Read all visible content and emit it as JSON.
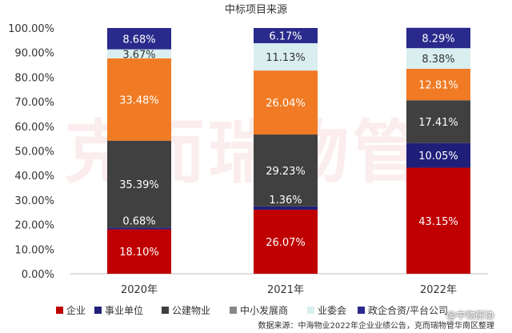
{
  "chart_data": {
    "type": "bar",
    "stacked": true,
    "title": "中标项目来源",
    "categories": [
      "2020年",
      "2021年",
      "2022年"
    ],
    "ylim": [
      0,
      100
    ],
    "yticks": [
      "0.00%",
      "10.00%",
      "20.00%",
      "30.00%",
      "40.00%",
      "50.00%",
      "60.00%",
      "70.00%",
      "80.00%",
      "90.00%",
      "100.00%"
    ],
    "legend_position": "bottom",
    "grid": false,
    "series": [
      {
        "name": "企业",
        "color": "#c00000",
        "values": [
          18.1,
          26.07,
          43.15
        ],
        "labels": [
          "18.10%",
          "26.07%",
          "43.15%"
        ]
      },
      {
        "name": "事业单位",
        "color": "#1f1f7a",
        "values": [
          0.68,
          1.36,
          10.05
        ],
        "labels": [
          "0.68%",
          "1.36%",
          "10.05%"
        ]
      },
      {
        "name": "公建物业",
        "color": "#404040",
        "values": [
          35.39,
          29.23,
          17.41
        ],
        "labels": [
          "35.39%",
          "29.23%",
          "17.41%"
        ]
      },
      {
        "name": "中小发展商",
        "color": "#f07b24",
        "values": [
          33.48,
          26.04,
          12.81
        ],
        "labels": [
          "33.48%",
          "26.04%",
          "12.81%"
        ]
      },
      {
        "name": "业委会",
        "color": "#d9eeef",
        "values": [
          3.67,
          11.13,
          8.38
        ],
        "labels": [
          "3.67%",
          "11.13%",
          "8.38%"
        ]
      },
      {
        "name": "政企合资/平台公司",
        "color": "#2a2a8c",
        "values": [
          8.68,
          6.17,
          8.29
        ],
        "labels": [
          "8.68%",
          "6.17%",
          "8.29%"
        ]
      }
    ],
    "legend_colors": [
      "#c00000",
      "#1f1f7a",
      "#404040",
      "#888888",
      "#d9eeef",
      "#2a2a8c"
    ],
    "source_note": "数据来源：中海物业2022年企业业绩公告，克而瑞物管华南区整理"
  },
  "watermark": "克而瑞物管",
  "seal": "@中物研协"
}
